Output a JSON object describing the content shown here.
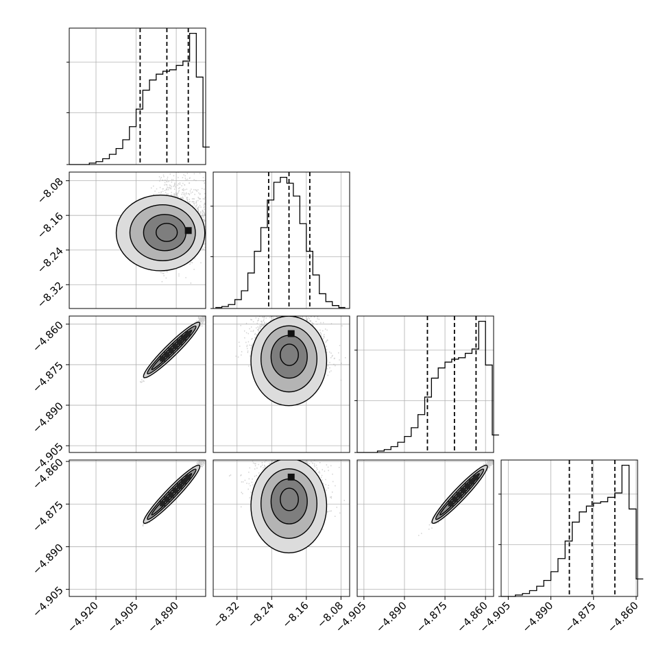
{
  "chart_data": {
    "type": "corner",
    "axis_ticks": {
      "p1": {
        "min": -4.93,
        "max": -4.879,
        "ticks": [
          "−4.920",
          "−4.905",
          "−4.890"
        ],
        "values": [
          -4.92,
          -4.905,
          -4.89
        ]
      },
      "p2": {
        "min": -8.375,
        "max": -8.06,
        "ticks": [
          "−8.32",
          "−8.24",
          "−8.16",
          "−8.08"
        ],
        "values": [
          -8.32,
          -8.24,
          -8.16,
          -8.08
        ]
      },
      "p3": {
        "min": -4.9075,
        "max": -4.857,
        "ticks": [
          "−4.905",
          "−4.890",
          "−4.875",
          "−4.860"
        ],
        "values": [
          -4.905,
          -4.89,
          -4.875,
          -4.86
        ]
      },
      "p4": {
        "min": -4.9075,
        "max": -4.8595,
        "ticks": [
          "−4.905",
          "−4.890",
          "−4.875",
          "−4.860"
        ],
        "values": [
          -4.905,
          -4.89,
          -4.875,
          -4.86
        ]
      }
    },
    "marginals": [
      {
        "param": "p1",
        "bins_x": [
          -4.93,
          -4.9275,
          -4.925,
          -4.9225,
          -4.92,
          -4.9175,
          -4.915,
          -4.9125,
          -4.91,
          -4.9075,
          -4.905,
          -4.9025,
          -4.9,
          -4.8975,
          -4.895,
          -4.8925,
          -4.89,
          -4.8875,
          -4.885,
          -4.8825,
          -4.88
        ],
        "counts": [
          0,
          0,
          0,
          1,
          2,
          4,
          7,
          11,
          17,
          26,
          38,
          51,
          58,
          62,
          64,
          65,
          68,
          71,
          90,
          60,
          12
        ],
        "quantiles": [
          -4.9035,
          -4.8935,
          -4.8855
        ]
      },
      {
        "param": "p2",
        "bins_x": [
          -8.37,
          -8.355,
          -8.34,
          -8.325,
          -8.31,
          -8.295,
          -8.28,
          -8.265,
          -8.25,
          -8.235,
          -8.22,
          -8.205,
          -8.19,
          -8.175,
          -8.16,
          -8.145,
          -8.13,
          -8.115,
          -8.1,
          -8.085,
          -8.07
        ],
        "counts": [
          1,
          2,
          4,
          9,
          18,
          36,
          58,
          82,
          110,
          128,
          133,
          127,
          114,
          86,
          58,
          34,
          15,
          7,
          3,
          1
        ],
        "quantiles": [
          -8.247,
          -8.2,
          -8.152
        ]
      },
      {
        "param": "p3",
        "bins_x": [
          -4.9075,
          -4.905,
          -4.9025,
          -4.9,
          -4.8975,
          -4.895,
          -4.8925,
          -4.89,
          -4.8875,
          -4.885,
          -4.8825,
          -4.88,
          -4.8775,
          -4.875,
          -4.8725,
          -4.87,
          -4.8675,
          -4.865,
          -4.8625,
          -4.86,
          -4.8575
        ],
        "counts": [
          0,
          0,
          0,
          1,
          2,
          4,
          7,
          11,
          17,
          26,
          38,
          51,
          58,
          62,
          64,
          65,
          68,
          71,
          90,
          60,
          12
        ],
        "quantiles": [
          -4.8815,
          -4.8715,
          -4.8635
        ]
      },
      {
        "param": "p4",
        "bins_x": [
          -4.9075,
          -4.905,
          -4.9025,
          -4.9,
          -4.8975,
          -4.895,
          -4.8925,
          -4.89,
          -4.8875,
          -4.885,
          -4.8825,
          -4.88,
          -4.8775,
          -4.875,
          -4.8725,
          -4.87,
          -4.8675,
          -4.865,
          -4.8625,
          -4.86
        ],
        "counts": [
          0,
          0,
          1,
          2,
          4,
          7,
          11,
          17,
          26,
          38,
          51,
          58,
          62,
          64,
          65,
          68,
          71,
          90,
          60,
          12
        ],
        "quantiles": [
          -4.8835,
          -4.8755,
          -4.8675
        ]
      }
    ],
    "pairs": [
      {
        "x": "p1",
        "y": "p2",
        "center": [
          -4.8968,
          -8.201
        ],
        "sigma": [
          0.0072,
          0.038
        ],
        "rho": 0.15,
        "skew_x": -1,
        "peak": [
          -4.8855,
          -8.195
        ]
      },
      {
        "x": "p1",
        "y": "p3",
        "center": [
          -4.8968,
          -4.8745
        ],
        "sigma": [
          0.0072,
          0.0072
        ],
        "rho": 0.996,
        "skew_x": -1,
        "peak": [
          -4.8855,
          -4.8635
        ]
      },
      {
        "x": "p2",
        "y": "p3",
        "center": [
          -8.201,
          -4.8745
        ],
        "sigma": [
          0.038,
          0.0072
        ],
        "rho": 0.15,
        "skew_y": -1,
        "peak": [
          -8.195,
          -4.8635
        ]
      },
      {
        "x": "p1",
        "y": "p4",
        "center": [
          -4.8968,
          -4.8765
        ],
        "sigma": [
          0.0072,
          0.0072
        ],
        "rho": 0.996,
        "skew_x": -1,
        "peak": [
          -4.8855,
          -4.8655
        ]
      },
      {
        "x": "p2",
        "y": "p4",
        "center": [
          -8.201,
          -4.8765
        ],
        "sigma": [
          0.038,
          0.0072
        ],
        "rho": 0.15,
        "skew_y": -1,
        "peak": [
          -8.195,
          -4.8655
        ]
      },
      {
        "x": "p3",
        "y": "p4",
        "center": [
          -4.8745,
          -4.8765
        ],
        "sigma": [
          0.0072,
          0.0072
        ],
        "rho": 0.996,
        "skew_x": -1,
        "peak": [
          -4.8635,
          -4.8655
        ]
      }
    ],
    "grid": true,
    "colors": {
      "line": "#000000",
      "points": "#9a9a9a",
      "grid": "#b0b0b0"
    }
  }
}
